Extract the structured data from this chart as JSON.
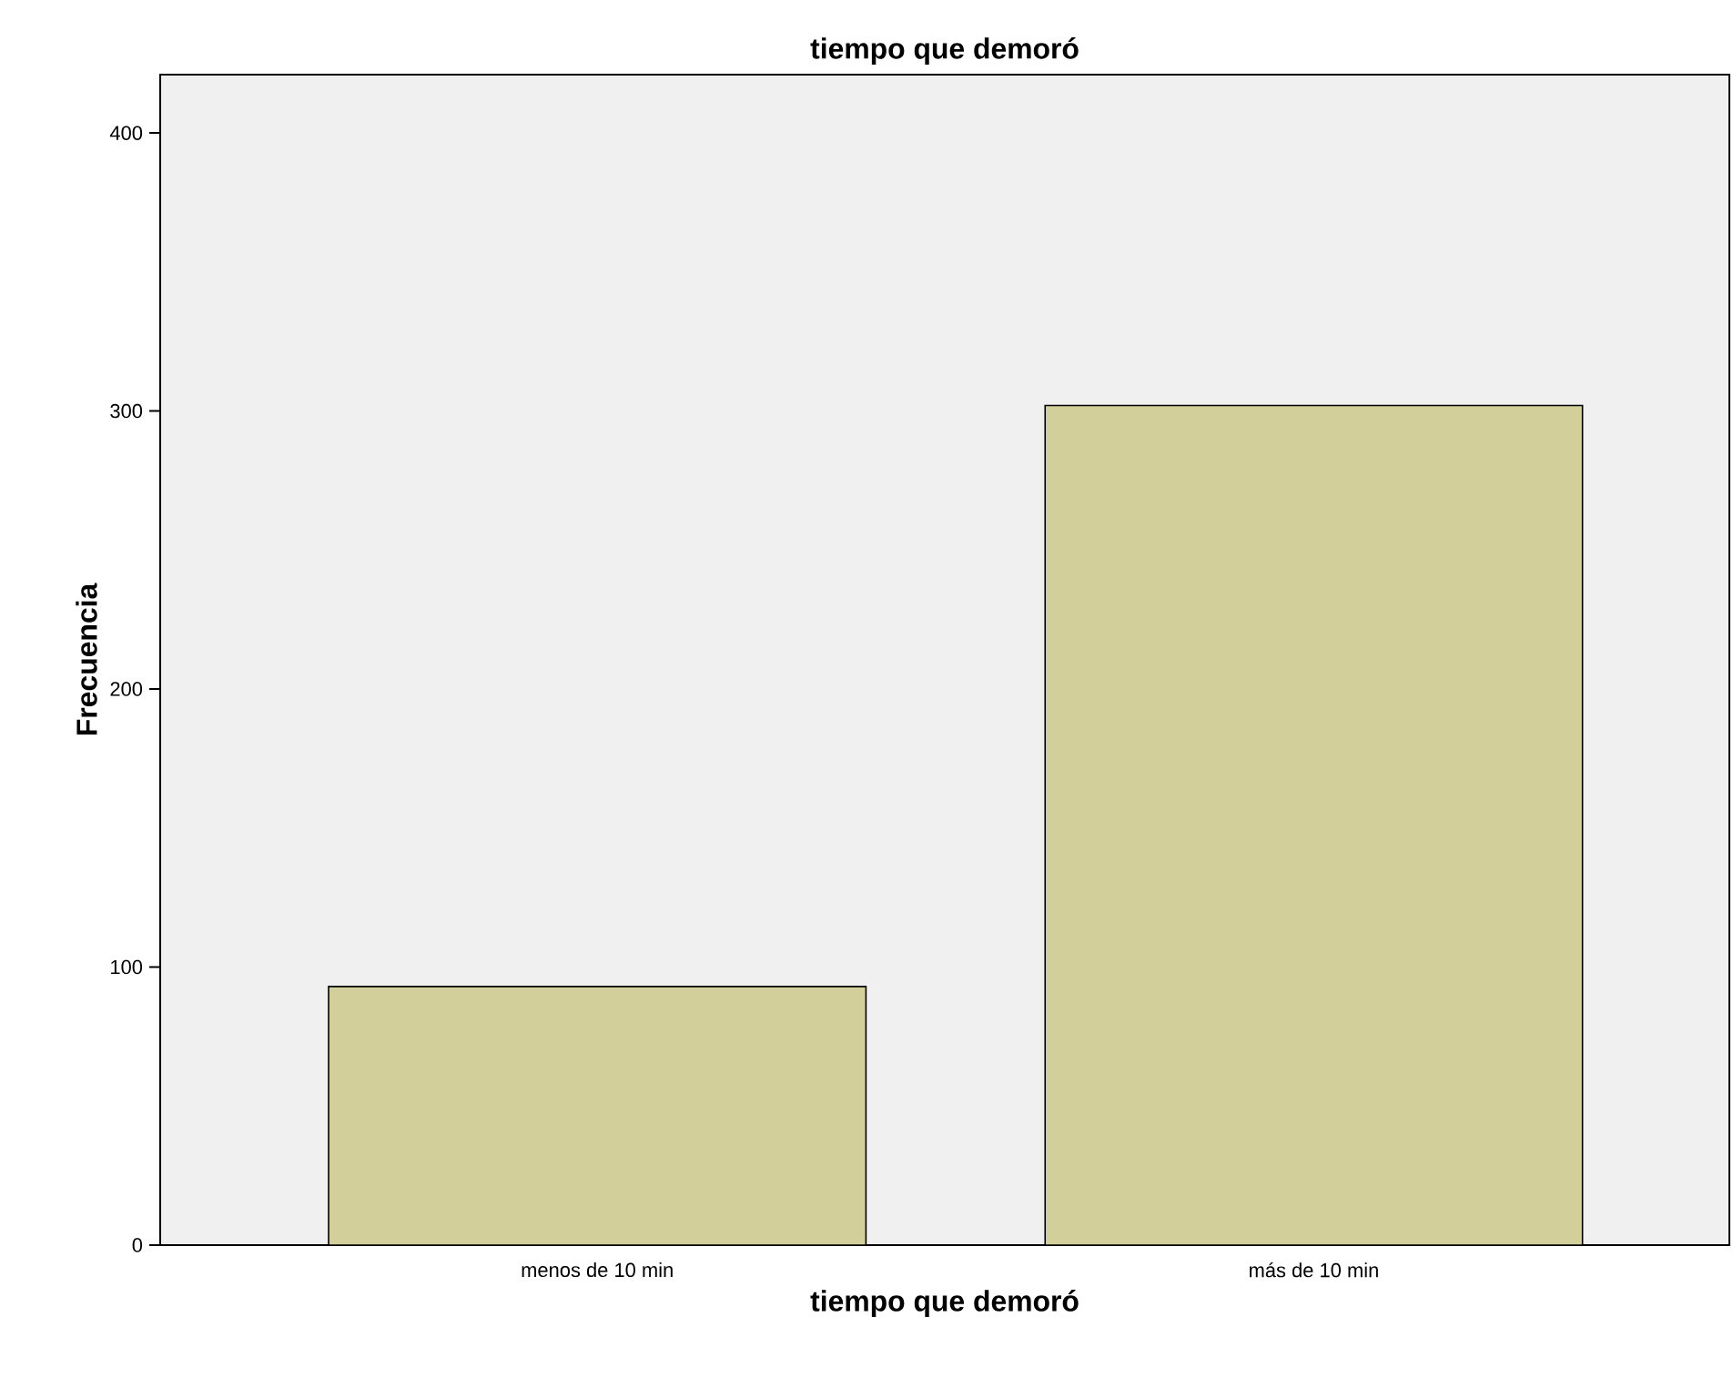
{
  "chart_data": {
    "type": "bar",
    "title": "tiempo que demoró",
    "xlabel": "tiempo que demoró",
    "ylabel": "Frecuencia",
    "categories": [
      "menos de 10 min",
      "más de 10 min"
    ],
    "values": [
      93,
      302
    ],
    "color": "#d3cf9b",
    "ylim": [
      0,
      421
    ],
    "yticks": [
      0,
      100,
      200,
      300,
      400
    ]
  }
}
